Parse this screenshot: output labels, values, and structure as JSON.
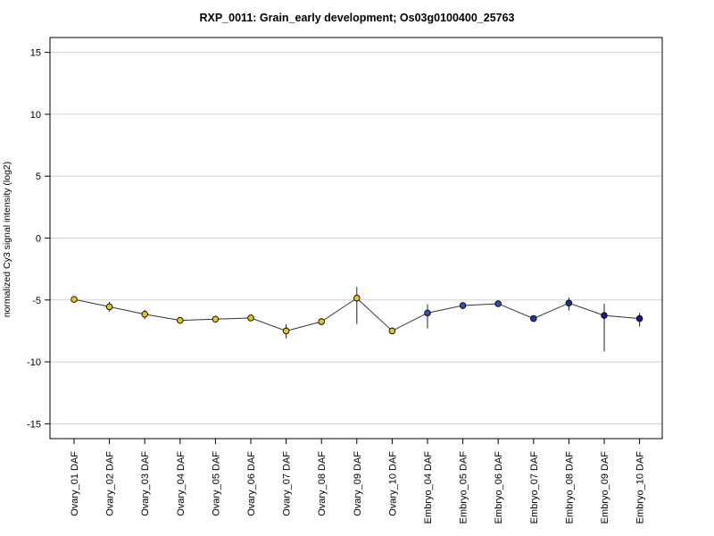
{
  "chart_data": {
    "type": "line",
    "title": "RXP_0011: Grain_early development; Os03g0100400_25763",
    "xlabel": "",
    "ylabel": "normalized Cy3 signal intensity (log2)",
    "ylim": [
      -16.2,
      16.2
    ],
    "yticks": [
      -15,
      -10,
      -5,
      0,
      5,
      10,
      15
    ],
    "grid": true,
    "categories": [
      "Ovary_01 DAF",
      "Ovary_02 DAF",
      "Ovary_03 DAF",
      "Ovary_04 DAF",
      "Ovary_05 DAF",
      "Ovary_06 DAF",
      "Ovary_07 DAF",
      "Ovary_08 DAF",
      "Ovary_09 DAF",
      "Ovary_10 DAF",
      "Embryo_04 DAF",
      "Embryo_05 DAF",
      "Embryo_06 DAF",
      "Embryo_07 DAF",
      "Embryo_08 DAF",
      "Embryo_09 DAF",
      "Embryo_10 DAF"
    ],
    "series": [
      {
        "values": [
          -4.95,
          -5.55,
          -6.15,
          -6.65,
          -6.55,
          -6.45,
          -7.5,
          -6.75,
          -4.85,
          -7.5,
          -6.05,
          -5.45,
          -5.3,
          -6.5,
          -5.25,
          -6.25,
          -6.5
        ],
        "err_low": [
          -4.95,
          -5.95,
          -6.55,
          -6.75,
          -6.65,
          -6.55,
          -8.1,
          -6.9,
          -6.95,
          -7.55,
          -7.3,
          -5.75,
          -5.45,
          -6.55,
          -5.85,
          -9.15,
          -7.15
        ],
        "err_high": [
          -4.95,
          -5.15,
          -5.8,
          -6.55,
          -6.45,
          -6.35,
          -6.95,
          -6.6,
          -3.95,
          -7.45,
          -5.35,
          -5.2,
          -5.15,
          -6.45,
          -4.8,
          -5.3,
          -6.05
        ],
        "colors": [
          "#e6c619",
          "#e6c619",
          "#e6c619",
          "#e6c619",
          "#e6c619",
          "#e6c619",
          "#e6c619",
          "#e6c619",
          "#e6c619",
          "#e6c619",
          "#2a56b8",
          "#2a56b8",
          "#2a56b8",
          "#1a3aa8",
          "#1a2fa0",
          "#1a1a90",
          "#1a1a88"
        ]
      }
    ]
  }
}
